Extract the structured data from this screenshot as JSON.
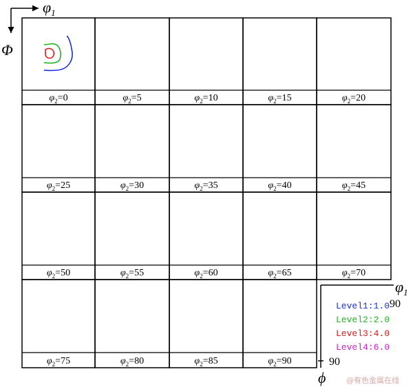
{
  "axes": {
    "phi1_symbol": "φ",
    "phi1_subscript": "1",
    "Phi_symbol": "Φ",
    "phi_symbol": "ϕ",
    "phi1_max": "90",
    "phi_max": "90"
  },
  "sections": [
    {
      "label_prefix": "φ",
      "label_sub": "2",
      "value": "=0"
    },
    {
      "label_prefix": "φ",
      "label_sub": "2",
      "value": "=5"
    },
    {
      "label_prefix": "φ",
      "label_sub": "2",
      "value": "=10"
    },
    {
      "label_prefix": "φ",
      "label_sub": "2",
      "value": "=15"
    },
    {
      "label_prefix": "φ",
      "label_sub": "2",
      "value": "=20"
    },
    {
      "label_prefix": "φ",
      "label_sub": "2",
      "value": "=25"
    },
    {
      "label_prefix": "φ",
      "label_sub": "2",
      "value": "=30"
    },
    {
      "label_prefix": "φ",
      "label_sub": "2",
      "value": "=35"
    },
    {
      "label_prefix": "φ",
      "label_sub": "2",
      "value": "=40"
    },
    {
      "label_prefix": "φ",
      "label_sub": "2",
      "value": "=45"
    },
    {
      "label_prefix": "φ",
      "label_sub": "2",
      "value": "=50"
    },
    {
      "label_prefix": "φ",
      "label_sub": "2",
      "value": "=55"
    },
    {
      "label_prefix": "φ",
      "label_sub": "2",
      "value": "=60"
    },
    {
      "label_prefix": "φ",
      "label_sub": "2",
      "value": "=65"
    },
    {
      "label_prefix": "φ",
      "label_sub": "2",
      "value": "=70"
    },
    {
      "label_prefix": "φ",
      "label_sub": "2",
      "value": "=75"
    },
    {
      "label_prefix": "φ",
      "label_sub": "2",
      "value": "=80"
    },
    {
      "label_prefix": "φ",
      "label_sub": "2",
      "value": "=85"
    },
    {
      "label_prefix": "φ",
      "label_sub": "2",
      "value": "=90"
    }
  ],
  "legend": {
    "items": [
      {
        "text": "Level1:1.0",
        "color": "#1a2ee0"
      },
      {
        "text": "Level2:2.0",
        "color": "#22b422"
      },
      {
        "text": "Level3:4.0",
        "color": "#e01818"
      },
      {
        "text": "Level4:6.0",
        "color": "#d21ad2"
      }
    ]
  },
  "watermark": "@有色金属在线",
  "colors": {
    "level1": "#1a2ee0",
    "level2": "#22b422",
    "level3": "#e01818",
    "level4": "#d21ad2",
    "frame": "#000000"
  }
}
